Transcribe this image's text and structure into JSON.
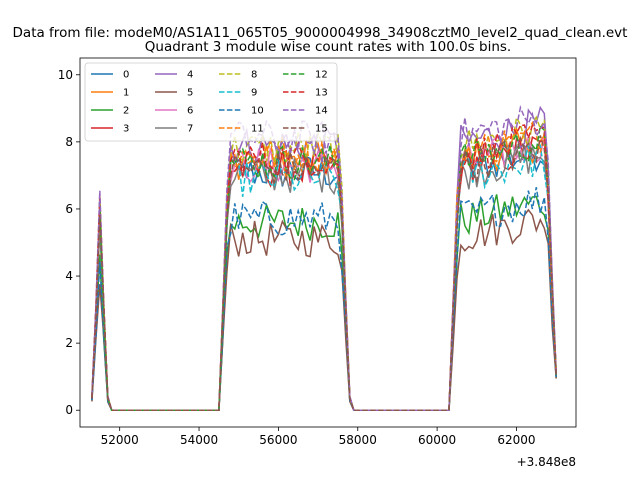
{
  "figure": {
    "suptitle": "Data from file: modeM0/AS1A11_065T05_9000004998_34908cztM0_level2_quad_clean.evt"
  },
  "chart_data": {
    "type": "line",
    "title": "Quadrant 3 module wise count rates with 100.0s bins.",
    "xlabel": "",
    "ylabel": "",
    "x_offset_label": "+3.848e8",
    "xlim": [
      51000,
      63500
    ],
    "ylim": [
      -0.5,
      10.5
    ],
    "xticks": [
      52000,
      54000,
      56000,
      58000,
      60000,
      62000
    ],
    "yticks": [
      0,
      2,
      4,
      6,
      8,
      10
    ],
    "grid": false,
    "legend_placement": "top-left",
    "legend_columns": 4,
    "series": [
      {
        "name": "0",
        "color": "#1f77b4",
        "dashed": false,
        "level": 7.1
      },
      {
        "name": "1",
        "color": "#ff7f0e",
        "dashed": false,
        "level": 7.4
      },
      {
        "name": "2",
        "color": "#2ca02c",
        "dashed": false,
        "level": 5.6
      },
      {
        "name": "3",
        "color": "#d62728",
        "dashed": false,
        "level": 7.2
      },
      {
        "name": "4",
        "color": "#9467bd",
        "dashed": false,
        "level": 7.9
      },
      {
        "name": "5",
        "color": "#8c564b",
        "dashed": false,
        "level": 5.1
      },
      {
        "name": "6",
        "color": "#e377c2",
        "dashed": false,
        "level": 7.3
      },
      {
        "name": "7",
        "color": "#7f7f7f",
        "dashed": false,
        "level": 7.0
      },
      {
        "name": "8",
        "color": "#bcbd22",
        "dashed": true,
        "level": 7.8
      },
      {
        "name": "9",
        "color": "#17becf",
        "dashed": true,
        "level": 6.9
      },
      {
        "name": "10",
        "color": "#1f77b4",
        "dashed": true,
        "level": 5.7
      },
      {
        "name": "11",
        "color": "#ff7f0e",
        "dashed": true,
        "level": 7.6
      },
      {
        "name": "12",
        "color": "#2ca02c",
        "dashed": true,
        "level": 7.4
      },
      {
        "name": "13",
        "color": "#d62728",
        "dashed": true,
        "level": 7.5
      },
      {
        "name": "14",
        "color": "#9467bd",
        "dashed": true,
        "level": 8.1
      },
      {
        "name": "15",
        "color": "#8c564b",
        "dashed": true,
        "level": 7.2
      }
    ],
    "segments": [
      {
        "x_start": 51300,
        "x_end": 51700,
        "state": "on"
      },
      {
        "x_start": 51700,
        "x_end": 54500,
        "state": "zero"
      },
      {
        "x_start": 54500,
        "x_end": 57800,
        "state": "on"
      },
      {
        "x_start": 57800,
        "x_end": 60300,
        "state": "zero"
      },
      {
        "x_start": 60300,
        "x_end": 63000,
        "state": "on"
      }
    ]
  }
}
